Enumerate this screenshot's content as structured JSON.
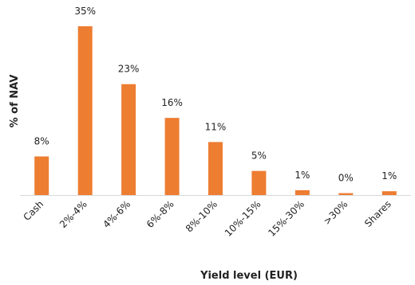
{
  "chart_data": {
    "type": "bar",
    "title": "",
    "xlabel": "Yield level (EUR)",
    "ylabel": "% of NAV",
    "categories": [
      "Cash",
      "2%-4%",
      "4%-6%",
      "6%-8%",
      "8%-10%",
      "10%-15%",
      "15%-30%",
      ">30%",
      "Shares"
    ],
    "values": [
      8,
      35,
      23,
      16,
      11,
      5,
      1,
      0.4,
      0.8
    ],
    "data_labels": [
      "8%",
      "35%",
      "23%",
      "16%",
      "11%",
      "5%",
      "1%",
      "0%",
      "1%"
    ],
    "ylim": [
      0,
      35
    ],
    "grid": false,
    "legend": "none",
    "bar_color": "#ED7D31",
    "axis_color": "#D9D9D9"
  }
}
